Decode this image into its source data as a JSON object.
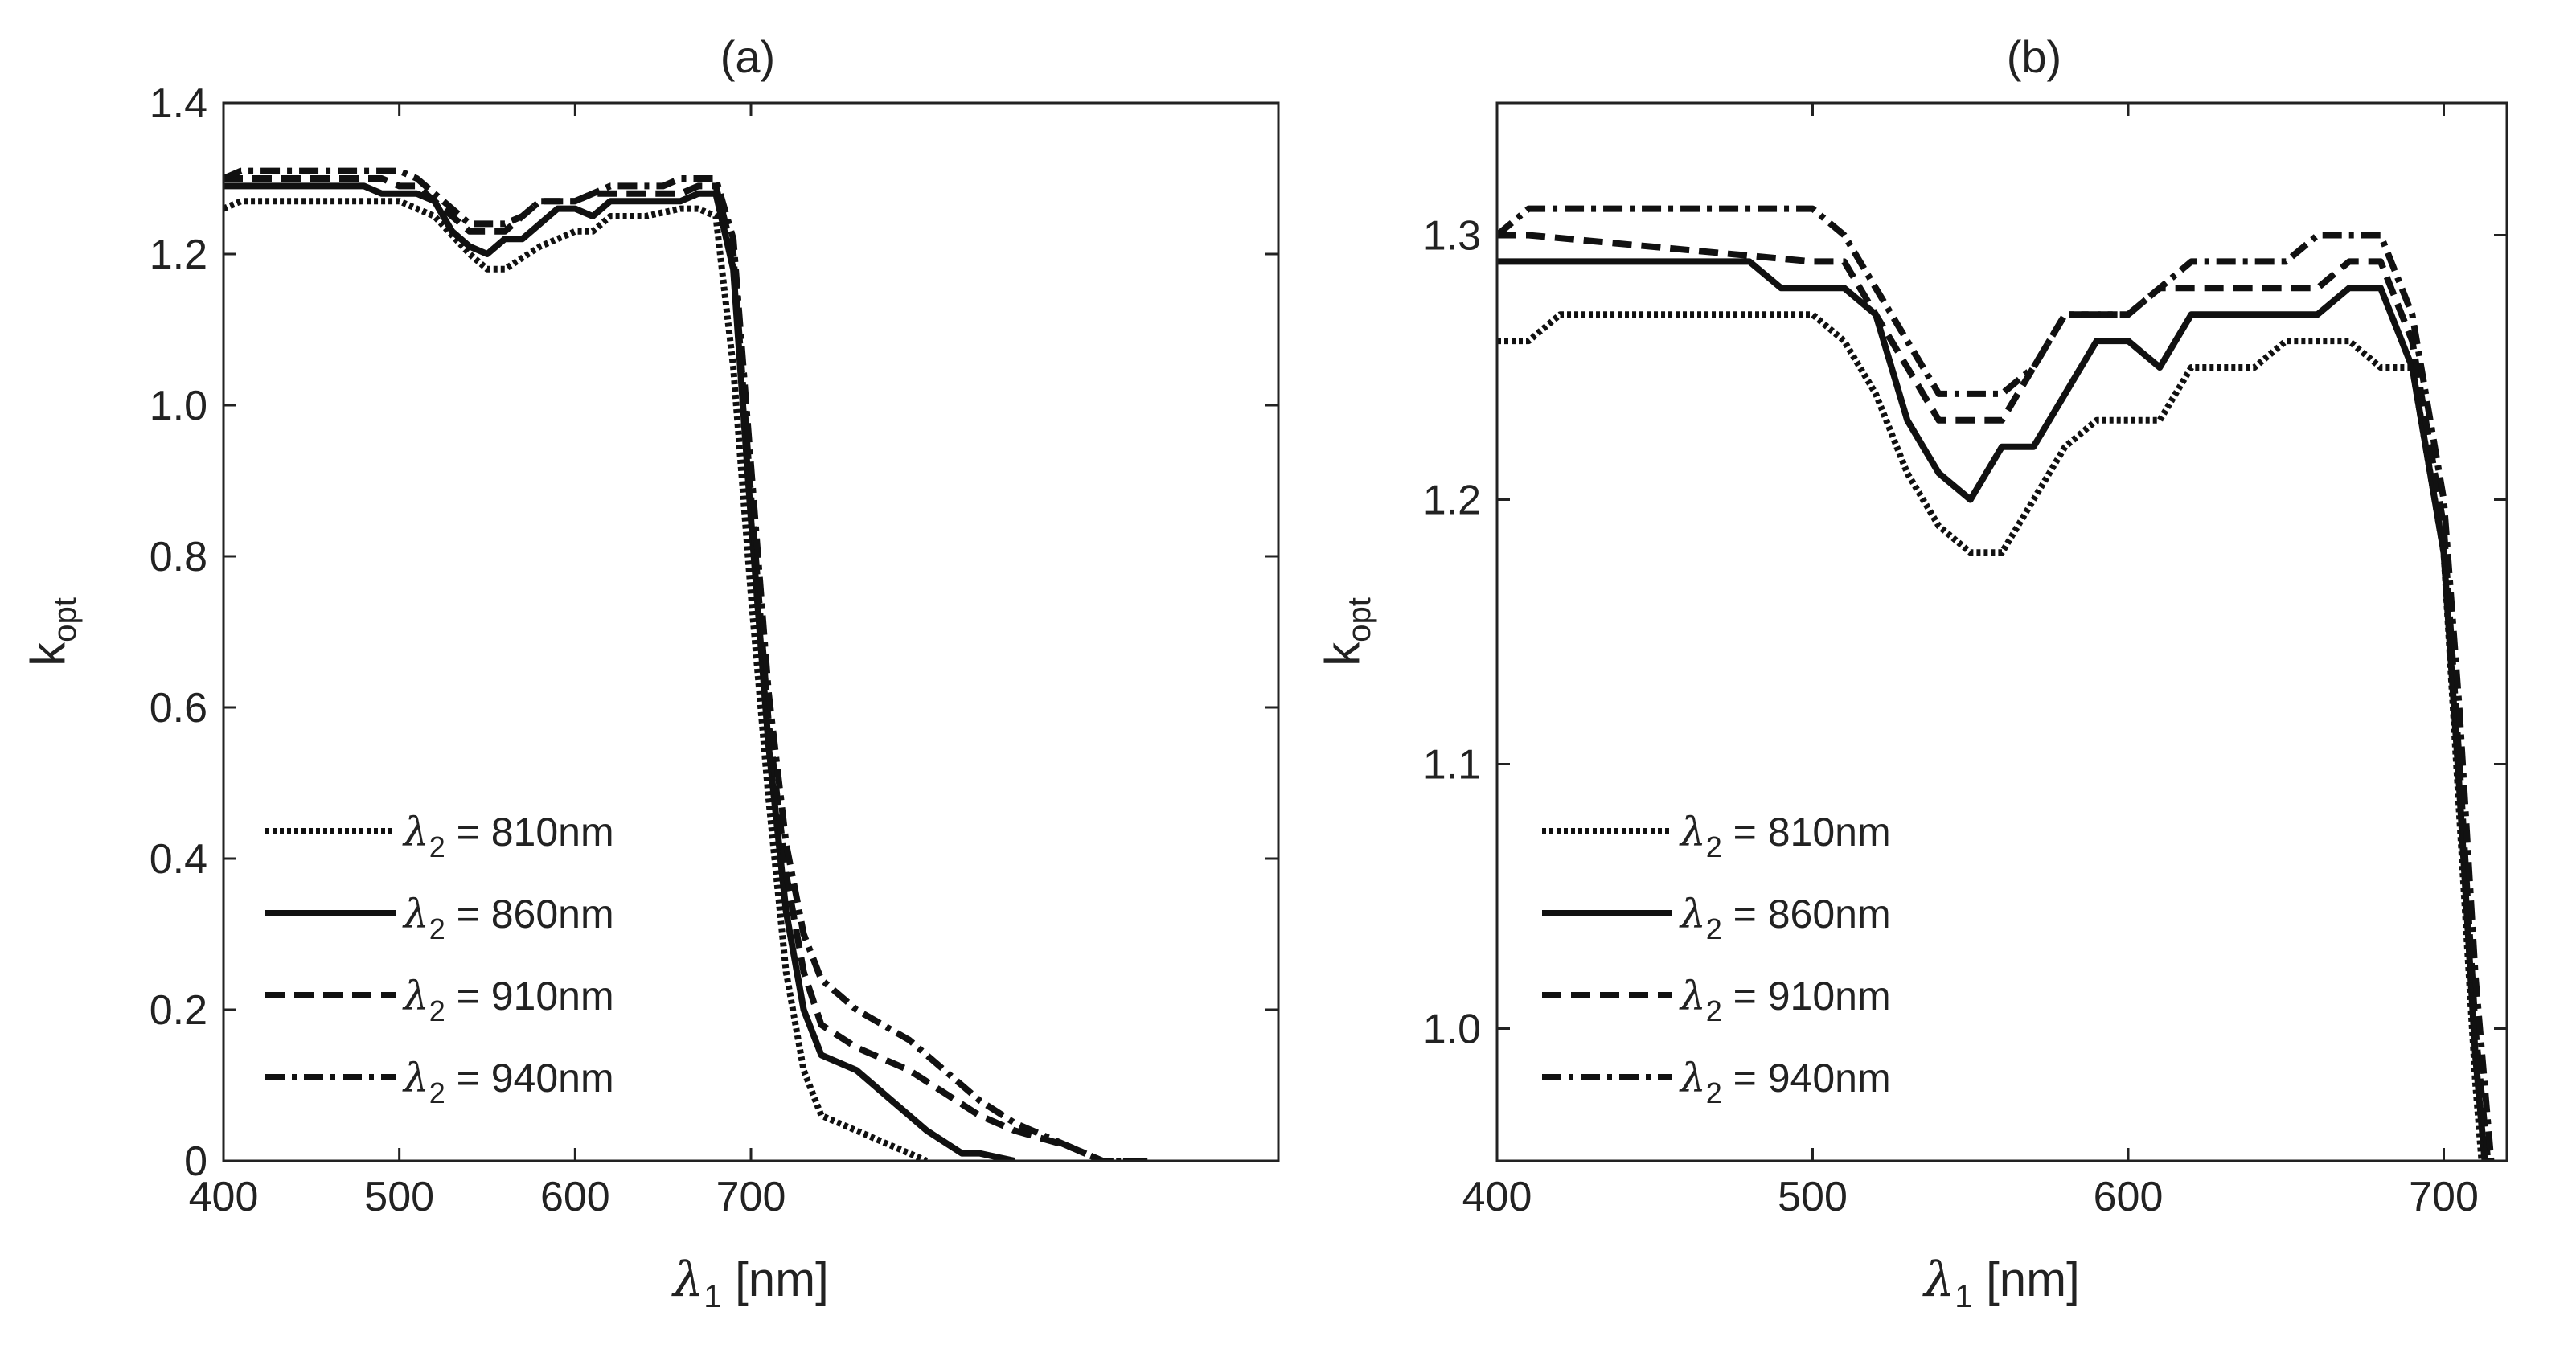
{
  "chart_data": [
    {
      "type": "line",
      "title": "(a)",
      "xlabel": "λ1 [nm]",
      "xlabel_symbol": "λ",
      "xlabel_sub": "1",
      "xlabel_unit": "[nm]",
      "ylabel": "kopt",
      "ylabel_main": "k",
      "ylabel_sub": "opt",
      "xlim": [
        400,
        1000
      ],
      "ylim": [
        0,
        1.4
      ],
      "xticks": [
        400,
        500,
        600,
        700
      ],
      "xtick_labels": [
        "400",
        "500",
        "600",
        "700"
      ],
      "yticks": [
        0,
        0.2,
        0.4,
        0.6,
        0.8,
        1.0,
        1.2,
        1.4
      ],
      "ytick_labels": [
        "0",
        "0.2",
        "0.4",
        "0.6",
        "0.8",
        "1.0",
        "1.2",
        "1.4"
      ],
      "legend_position": "lower-left",
      "grid": false,
      "series": [
        {
          "name": "λ2 = 810nm",
          "legend_symbol": "λ",
          "legend_sub": "2",
          "legend_text": " = 810nm",
          "dash": "dotted",
          "x": [
            400,
            410,
            500,
            520,
            540,
            550,
            560,
            580,
            600,
            610,
            620,
            640,
            660,
            670,
            680,
            690,
            700,
            710,
            720,
            730,
            740,
            760,
            780,
            790,
            800
          ],
          "y": [
            1.26,
            1.27,
            1.27,
            1.25,
            1.2,
            1.18,
            1.18,
            1.21,
            1.23,
            1.23,
            1.25,
            1.25,
            1.26,
            1.26,
            1.25,
            1.05,
            0.75,
            0.48,
            0.25,
            0.12,
            0.06,
            0.04,
            0.02,
            0.01,
            0.0
          ]
        },
        {
          "name": "λ2 = 860nm",
          "legend_symbol": "λ",
          "legend_sub": "2",
          "legend_text": " = 860nm",
          "dash": "solid",
          "x": [
            400,
            480,
            490,
            510,
            520,
            530,
            540,
            550,
            560,
            570,
            590,
            600,
            610,
            620,
            660,
            670,
            680,
            690,
            700,
            710,
            720,
            730,
            740,
            760,
            780,
            800,
            820,
            830,
            850
          ],
          "y": [
            1.29,
            1.29,
            1.28,
            1.28,
            1.27,
            1.23,
            1.21,
            1.2,
            1.22,
            1.22,
            1.26,
            1.26,
            1.25,
            1.27,
            1.27,
            1.28,
            1.28,
            1.18,
            0.85,
            0.55,
            0.33,
            0.2,
            0.14,
            0.12,
            0.08,
            0.04,
            0.01,
            0.01,
            0.0
          ]
        },
        {
          "name": "λ2 = 910nm",
          "legend_symbol": "λ",
          "legend_sub": "2",
          "legend_text": " = 910nm",
          "dash": "dashed",
          "x": [
            400,
            410,
            490,
            500,
            510,
            520,
            530,
            540,
            560,
            570,
            580,
            600,
            610,
            620,
            660,
            670,
            680,
            690,
            700,
            710,
            720,
            730,
            740,
            760,
            790,
            810,
            830,
            850,
            880,
            900,
            920
          ],
          "y": [
            1.3,
            1.3,
            1.3,
            1.29,
            1.29,
            1.27,
            1.25,
            1.23,
            1.23,
            1.25,
            1.27,
            1.27,
            1.28,
            1.28,
            1.28,
            1.29,
            1.29,
            1.2,
            0.88,
            0.58,
            0.38,
            0.25,
            0.18,
            0.15,
            0.12,
            0.09,
            0.06,
            0.04,
            0.02,
            0.0,
            0.0
          ]
        },
        {
          "name": "λ2 = 940nm",
          "legend_symbol": "λ",
          "legend_sub": "2",
          "legend_text": " = 940nm",
          "dash": "dashdot",
          "x": [
            400,
            410,
            500,
            510,
            520,
            530,
            540,
            560,
            570,
            580,
            600,
            610,
            620,
            650,
            660,
            670,
            680,
            690,
            700,
            710,
            720,
            730,
            740,
            760,
            790,
            810,
            830,
            850,
            880,
            900,
            930
          ],
          "y": [
            1.3,
            1.31,
            1.31,
            1.3,
            1.28,
            1.26,
            1.24,
            1.24,
            1.25,
            1.27,
            1.27,
            1.28,
            1.29,
            1.29,
            1.3,
            1.3,
            1.3,
            1.22,
            0.92,
            0.62,
            0.42,
            0.3,
            0.24,
            0.2,
            0.16,
            0.12,
            0.08,
            0.05,
            0.02,
            0.0,
            0.0
          ]
        }
      ]
    },
    {
      "type": "line",
      "title": "(b)",
      "xlabel": "λ1 [nm]",
      "xlabel_symbol": "λ",
      "xlabel_sub": "1",
      "xlabel_unit": "[nm]",
      "ylabel": "kopt",
      "ylabel_main": "k",
      "ylabel_sub": "opt",
      "xlim": [
        400,
        720
      ],
      "ylim": [
        0.95,
        1.35
      ],
      "xticks": [
        400,
        500,
        600,
        700
      ],
      "xtick_labels": [
        "400",
        "500",
        "600",
        "700"
      ],
      "yticks": [
        1.0,
        1.1,
        1.2,
        1.3
      ],
      "ytick_labels": [
        "1.0",
        "1.1",
        "1.2",
        "1.3"
      ],
      "legend_position": "lower-left",
      "grid": false,
      "series": [
        {
          "name": "λ2 = 810nm",
          "legend_symbol": "λ",
          "legend_sub": "2",
          "legend_text": " = 810nm",
          "dash": "dotted",
          "x": [
            400,
            410,
            420,
            500,
            510,
            520,
            530,
            540,
            550,
            560,
            570,
            580,
            590,
            610,
            620,
            640,
            650,
            660,
            670,
            680,
            690,
            700,
            705,
            710,
            712
          ],
          "y": [
            1.26,
            1.26,
            1.27,
            1.27,
            1.26,
            1.24,
            1.21,
            1.19,
            1.18,
            1.18,
            1.2,
            1.22,
            1.23,
            1.23,
            1.25,
            1.25,
            1.26,
            1.26,
            1.26,
            1.25,
            1.25,
            1.18,
            1.08,
            0.98,
            0.95
          ]
        },
        {
          "name": "λ2 = 860nm",
          "legend_symbol": "λ",
          "legend_sub": "2",
          "legend_text": " = 860nm",
          "dash": "solid",
          "x": [
            400,
            480,
            490,
            510,
            520,
            530,
            540,
            550,
            560,
            570,
            590,
            600,
            610,
            620,
            660,
            670,
            680,
            690,
            700,
            705,
            710,
            713
          ],
          "y": [
            1.29,
            1.29,
            1.28,
            1.28,
            1.27,
            1.23,
            1.21,
            1.2,
            1.22,
            1.22,
            1.26,
            1.26,
            1.25,
            1.27,
            1.27,
            1.28,
            1.28,
            1.25,
            1.18,
            1.09,
            0.99,
            0.95
          ]
        },
        {
          "name": "λ2 = 910nm",
          "legend_symbol": "λ",
          "legend_sub": "2",
          "legend_text": " = 910nm",
          "dash": "dashed",
          "x": [
            400,
            410,
            500,
            510,
            520,
            530,
            540,
            560,
            570,
            580,
            600,
            610,
            620,
            660,
            670,
            680,
            690,
            700,
            705,
            710,
            714
          ],
          "y": [
            1.3,
            1.3,
            1.29,
            1.29,
            1.27,
            1.25,
            1.23,
            1.23,
            1.25,
            1.27,
            1.27,
            1.28,
            1.28,
            1.28,
            1.29,
            1.29,
            1.26,
            1.19,
            1.1,
            1.0,
            0.95
          ]
        },
        {
          "name": "λ2 = 940nm",
          "legend_symbol": "λ",
          "legend_sub": "2",
          "legend_text": " = 940nm",
          "dash": "dashdot",
          "x": [
            400,
            410,
            500,
            510,
            520,
            530,
            540,
            560,
            570,
            580,
            600,
            610,
            620,
            650,
            660,
            670,
            680,
            690,
            700,
            705,
            710,
            715
          ],
          "y": [
            1.3,
            1.31,
            1.31,
            1.3,
            1.28,
            1.26,
            1.24,
            1.24,
            1.25,
            1.27,
            1.27,
            1.28,
            1.29,
            1.29,
            1.3,
            1.3,
            1.3,
            1.27,
            1.2,
            1.12,
            1.02,
            0.95
          ]
        }
      ]
    }
  ]
}
